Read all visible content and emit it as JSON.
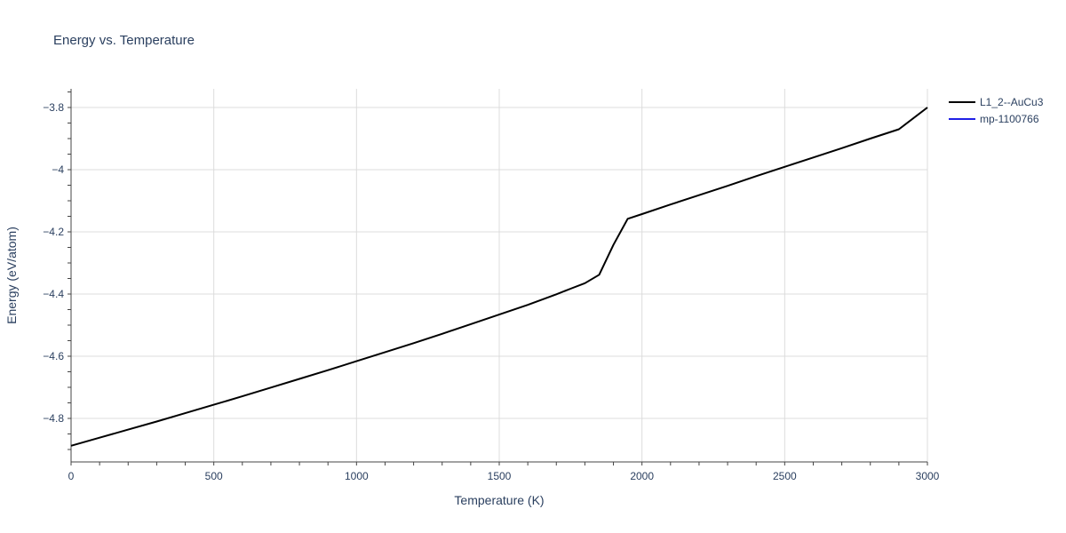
{
  "chart_data": {
    "type": "line",
    "title": "Energy vs. Temperature",
    "xlabel": "Temperature (K)",
    "ylabel": "Energy (eV/atom)",
    "xlim": [
      0,
      3000
    ],
    "ylim": [
      -4.94,
      -3.74
    ],
    "xticks": [
      0,
      500,
      1000,
      1500,
      2000,
      2500,
      3000
    ],
    "xtick_labels": [
      "0",
      "500",
      "1000",
      "1500",
      "2000",
      "2500",
      "3000"
    ],
    "yticks": [
      -4.8,
      -4.6,
      -4.4,
      -4.2,
      -4.0,
      -3.8
    ],
    "ytick_labels": [
      "−4.8",
      "−4.6",
      "−4.4",
      "−4.2",
      "−4",
      "−3.8"
    ],
    "grid": true,
    "legend_position": "top-right-outside",
    "series": [
      {
        "name": "L1_2--AuCu3",
        "color": "#000000",
        "x": [
          0,
          100,
          200,
          300,
          400,
          500,
          600,
          700,
          800,
          900,
          1000,
          1100,
          1200,
          1300,
          1400,
          1500,
          1600,
          1700,
          1750,
          1800,
          1850,
          1900,
          1950,
          2000,
          2100,
          2200,
          2300,
          2400,
          2500,
          2600,
          2700,
          2800,
          2900,
          3000
        ],
        "y": [
          -4.888,
          -4.862,
          -4.836,
          -4.81,
          -4.783,
          -4.756,
          -4.729,
          -4.701,
          -4.673,
          -4.645,
          -4.616,
          -4.587,
          -4.558,
          -4.528,
          -4.497,
          -4.466,
          -4.435,
          -4.401,
          -4.383,
          -4.365,
          -4.338,
          -4.242,
          -4.158,
          -4.143,
          -4.112,
          -4.082,
          -4.052,
          -4.021,
          -3.991,
          -3.961,
          -3.931,
          -3.9,
          -3.87,
          -3.8
        ]
      },
      {
        "name": "mp-1100766",
        "color": "#1f1fe6",
        "x": [],
        "y": []
      }
    ]
  }
}
